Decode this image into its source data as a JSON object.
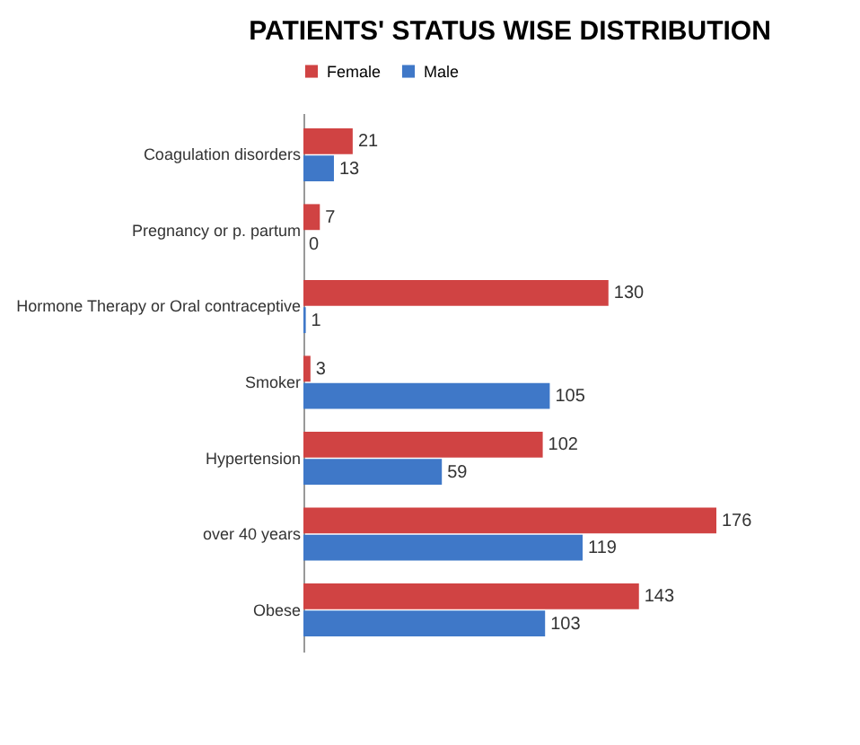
{
  "chart_data": {
    "type": "bar",
    "orientation": "horizontal",
    "title": "PATIENTS' STATUS WISE DISTRIBUTION",
    "categories": [
      "Coagulation disorders",
      "Pregnancy or p. partum",
      "Hormone Therapy or Oral contraceptive",
      "Smoker",
      "Hypertension",
      "over 40 years",
      "Obese"
    ],
    "series": [
      {
        "name": "Female",
        "color": "#d04343",
        "values": [
          21,
          7,
          130,
          3,
          102,
          176,
          143
        ]
      },
      {
        "name": "Male",
        "color": "#3f78c8",
        "values": [
          13,
          0,
          1,
          105,
          59,
          119,
          103
        ]
      }
    ],
    "data_labels": true,
    "legend": "top"
  }
}
